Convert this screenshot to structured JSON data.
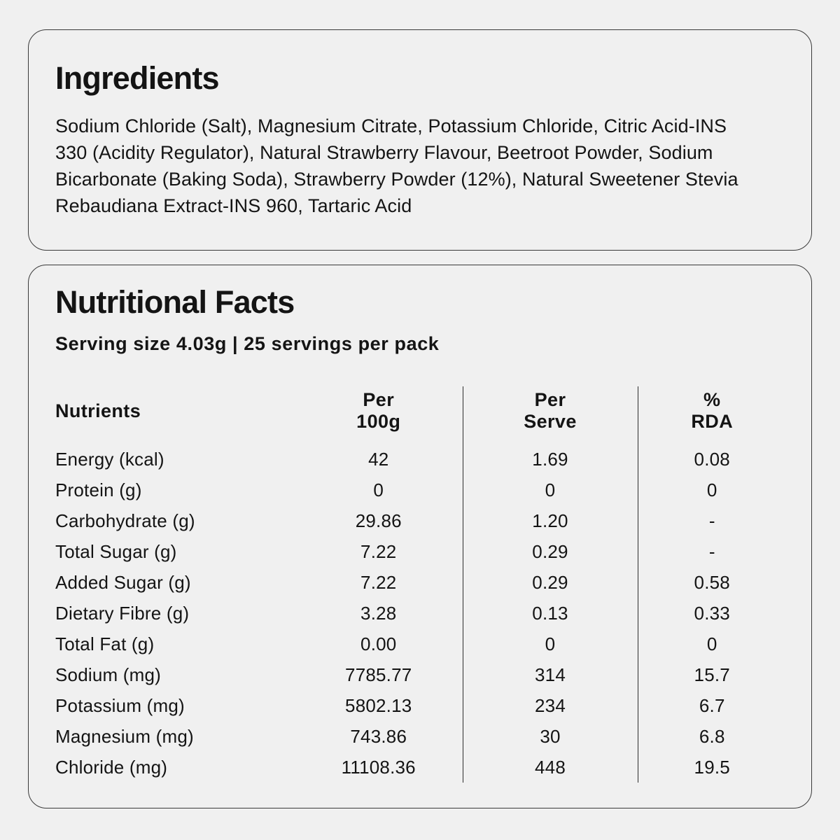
{
  "page": {
    "background_color": "#f0f0f0",
    "card_border_color": "#3a3a3a",
    "text_color": "#141414",
    "divider_color": "#2e2e2e"
  },
  "ingredients_card": {
    "title": "Ingredients",
    "text": "Sodium Chloride (Salt), Magnesium Citrate, Potassium Chloride, Citric Acid-INS 330 (Acidity Regulator), Natural Strawberry Flavour, Beetroot Powder, Sodium Bicarbonate (Baking Soda), Strawberry Powder (12%), Natural Sweetener Stevia Rebaudiana Extract-INS 960, Tartaric Acid"
  },
  "nutrition_card": {
    "title": "Nutritional Facts",
    "serving_info": "Serving size 4.03g | 25 servings per pack",
    "table": {
      "headers": {
        "col1": "Nutrients",
        "col2": [
          "Per",
          "100g"
        ],
        "col3": [
          "Per",
          "Serve"
        ],
        "col4": [
          "%",
          "RDA"
        ]
      },
      "rows": [
        {
          "label": "Energy (kcal)",
          "per_100g": "42",
          "per_serve": "1.69",
          "rda": "0.08"
        },
        {
          "label": "Protein (g)",
          "per_100g": "0",
          "per_serve": "0",
          "rda": "0"
        },
        {
          "label": "Carbohydrate (g)",
          "per_100g": "29.86",
          "per_serve": "1.20",
          "rda": "-"
        },
        {
          "label": "Total Sugar (g)",
          "per_100g": "7.22",
          "per_serve": "0.29",
          "rda": "-"
        },
        {
          "label": "Added Sugar (g)",
          "per_100g": "7.22",
          "per_serve": "0.29",
          "rda": "0.58"
        },
        {
          "label": "Dietary Fibre (g)",
          "per_100g": "3.28",
          "per_serve": "0.13",
          "rda": "0.33"
        },
        {
          "label": "Total Fat (g)",
          "per_100g": "0.00",
          "per_serve": "0",
          "rda": "0"
        },
        {
          "label": "Sodium (mg)",
          "per_100g": "7785.77",
          "per_serve": "314",
          "rda": "15.7"
        },
        {
          "label": "Potassium (mg)",
          "per_100g": "5802.13",
          "per_serve": "234",
          "rda": "6.7"
        },
        {
          "label": "Magnesium (mg)",
          "per_100g": "743.86",
          "per_serve": "30",
          "rda": "6.8"
        },
        {
          "label": "Chloride (mg)",
          "per_100g": "11108.36",
          "per_serve": "448",
          "rda": "19.5"
        }
      ]
    }
  }
}
